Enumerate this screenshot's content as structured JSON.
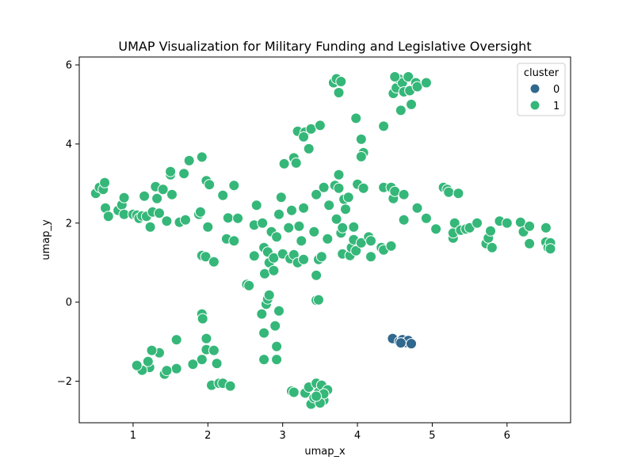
{
  "chart_data": {
    "type": "scatter",
    "title": "UMAP Visualization for Military Funding and Legislative Oversight",
    "xlabel": "umap_x",
    "ylabel": "umap_y",
    "xlim": [
      0.28,
      6.85
    ],
    "ylim": [
      -3.05,
      6.2
    ],
    "xticks": [
      1,
      2,
      3,
      4,
      5,
      6
    ],
    "yticks": [
      -2,
      0,
      2,
      4,
      6
    ],
    "legend": {
      "title": "cluster",
      "placement": "top-right",
      "entries": [
        "0",
        "1"
      ]
    },
    "colors": {
      "0": "#31688e",
      "1": "#35b779"
    },
    "series": [
      {
        "name": "0",
        "points": [
          [
            4.47,
            -0.92
          ],
          [
            4.56,
            -1.0
          ],
          [
            4.6,
            -0.95
          ],
          [
            4.64,
            -1.02
          ],
          [
            4.68,
            -0.97
          ],
          [
            4.72,
            -1.05
          ],
          [
            4.58,
            -1.03
          ]
        ]
      },
      {
        "name": "1",
        "points": [
          [
            0.5,
            2.75
          ],
          [
            0.55,
            2.9
          ],
          [
            0.6,
            2.85
          ],
          [
            0.62,
            3.02
          ],
          [
            0.63,
            2.38
          ],
          [
            0.67,
            2.17
          ],
          [
            0.8,
            2.32
          ],
          [
            0.85,
            2.46
          ],
          [
            0.88,
            2.64
          ],
          [
            0.88,
            2.22
          ],
          [
            1.0,
            2.22
          ],
          [
            1.05,
            2.2
          ],
          [
            1.08,
            2.12
          ],
          [
            1.12,
            2.18
          ],
          [
            1.15,
            2.68
          ],
          [
            1.18,
            2.17
          ],
          [
            1.23,
            1.9
          ],
          [
            1.26,
            2.28
          ],
          [
            1.3,
            2.92
          ],
          [
            1.32,
            2.62
          ],
          [
            1.35,
            2.25
          ],
          [
            1.4,
            2.85
          ],
          [
            1.45,
            2.05
          ],
          [
            1.5,
            3.22
          ],
          [
            1.5,
            3.3
          ],
          [
            1.52,
            2.72
          ],
          [
            1.62,
            2.02
          ],
          [
            1.68,
            3.25
          ],
          [
            1.7,
            2.08
          ],
          [
            1.75,
            3.58
          ],
          [
            1.88,
            2.22
          ],
          [
            1.9,
            2.28
          ],
          [
            1.92,
            3.67
          ],
          [
            1.98,
            3.07
          ],
          [
            2.02,
            2.97
          ],
          [
            2.0,
            1.9
          ],
          [
            1.92,
            1.18
          ],
          [
            1.97,
            1.15
          ],
          [
            2.08,
            1.02
          ],
          [
            2.2,
            2.7
          ],
          [
            2.25,
            1.6
          ],
          [
            2.27,
            2.13
          ],
          [
            2.35,
            2.95
          ],
          [
            2.35,
            1.55
          ],
          [
            2.4,
            2.12
          ],
          [
            2.52,
            0.45
          ],
          [
            2.62,
            1.95
          ],
          [
            2.62,
            1.17
          ],
          [
            2.65,
            2.45
          ],
          [
            2.73,
            2.0
          ],
          [
            2.75,
            1.38
          ],
          [
            2.76,
            0.72
          ],
          [
            2.8,
            1.27
          ],
          [
            2.82,
            1.0
          ],
          [
            2.85,
            1.78
          ],
          [
            2.88,
            1.12
          ],
          [
            2.88,
            0.8
          ],
          [
            2.92,
            1.65
          ],
          [
            2.95,
            2.22
          ],
          [
            2.98,
            2.65
          ],
          [
            3.0,
            1.22
          ],
          [
            3.02,
            3.5
          ],
          [
            3.08,
            1.88
          ],
          [
            3.1,
            1.1
          ],
          [
            3.12,
            2.32
          ],
          [
            3.15,
            3.65
          ],
          [
            3.15,
            1.2
          ],
          [
            3.18,
            3.52
          ],
          [
            3.2,
            4.32
          ],
          [
            3.2,
            1.0
          ],
          [
            3.22,
            1.92
          ],
          [
            3.25,
            1.55
          ],
          [
            3.28,
            2.38
          ],
          [
            3.28,
            1.08
          ],
          [
            3.3,
            4.3
          ],
          [
            3.28,
            4.18
          ],
          [
            3.35,
            3.88
          ],
          [
            3.38,
            4.38
          ],
          [
            3.42,
            1.78
          ],
          [
            3.45,
            0.68
          ],
          [
            3.45,
            2.72
          ],
          [
            3.48,
            1.08
          ],
          [
            3.5,
            4.47
          ],
          [
            3.52,
            1.15
          ],
          [
            3.55,
            2.9
          ],
          [
            3.6,
            1.6
          ],
          [
            3.62,
            2.45
          ],
          [
            3.7,
            2.95
          ],
          [
            3.72,
            2.1
          ],
          [
            3.75,
            3.22
          ],
          [
            3.75,
            2.88
          ],
          [
            3.78,
            1.75
          ],
          [
            3.8,
            1.88
          ],
          [
            3.8,
            1.22
          ],
          [
            3.82,
            2.6
          ],
          [
            3.84,
            2.35
          ],
          [
            3.88,
            2.65
          ],
          [
            3.9,
            1.18
          ],
          [
            3.92,
            1.38
          ],
          [
            3.95,
            1.58
          ],
          [
            3.95,
            1.9
          ],
          [
            3.98,
            1.3
          ],
          [
            4.0,
            2.98
          ],
          [
            4.05,
            1.5
          ],
          [
            4.08,
            2.88
          ],
          [
            4.15,
            1.65
          ],
          [
            4.18,
            1.55
          ],
          [
            4.18,
            1.15
          ],
          [
            4.32,
            1.38
          ],
          [
            4.35,
            2.9
          ],
          [
            4.35,
            1.32
          ],
          [
            4.45,
            2.9
          ],
          [
            4.45,
            1.42
          ],
          [
            4.48,
            2.62
          ],
          [
            4.5,
            2.8
          ],
          [
            4.62,
            2.72
          ],
          [
            4.62,
            2.08
          ],
          [
            4.8,
            2.38
          ],
          [
            4.92,
            2.12
          ],
          [
            5.05,
            1.85
          ],
          [
            5.15,
            2.9
          ],
          [
            5.2,
            2.85
          ],
          [
            5.22,
            2.78
          ],
          [
            5.28,
            1.62
          ],
          [
            5.28,
            1.75
          ],
          [
            5.3,
            2.0
          ],
          [
            5.35,
            2.75
          ],
          [
            5.38,
            1.82
          ],
          [
            5.45,
            1.85
          ],
          [
            5.5,
            1.88
          ],
          [
            5.6,
            2.0
          ],
          [
            5.72,
            1.48
          ],
          [
            5.75,
            1.62
          ],
          [
            5.78,
            1.8
          ],
          [
            5.8,
            1.38
          ],
          [
            5.9,
            2.05
          ],
          [
            6.0,
            2.0
          ],
          [
            6.18,
            2.02
          ],
          [
            6.22,
            1.78
          ],
          [
            6.3,
            1.92
          ],
          [
            6.3,
            1.48
          ],
          [
            6.52,
            1.88
          ],
          [
            6.52,
            1.52
          ],
          [
            6.55,
            1.38
          ],
          [
            6.58,
            1.5
          ],
          [
            6.58,
            1.35
          ],
          [
            4.35,
            4.45
          ],
          [
            3.98,
            4.65
          ],
          [
            4.05,
            4.12
          ],
          [
            4.08,
            3.78
          ],
          [
            4.05,
            3.68
          ],
          [
            3.68,
            5.55
          ],
          [
            3.72,
            5.65
          ],
          [
            3.78,
            5.58
          ],
          [
            3.75,
            5.3
          ],
          [
            4.48,
            5.28
          ],
          [
            4.52,
            5.42
          ],
          [
            4.55,
            5.65
          ],
          [
            4.6,
            5.55
          ],
          [
            4.62,
            5.32
          ],
          [
            4.68,
            5.7
          ],
          [
            4.7,
            5.35
          ],
          [
            4.72,
            5.0
          ],
          [
            4.78,
            5.55
          ],
          [
            4.8,
            5.45
          ],
          [
            4.58,
            4.85
          ],
          [
            4.92,
            5.55
          ],
          [
            4.5,
            5.7
          ],
          [
            2.55,
            0.42
          ],
          [
            2.78,
            -0.05
          ],
          [
            2.8,
            0.08
          ],
          [
            2.82,
            0.18
          ],
          [
            2.72,
            -0.3
          ],
          [
            2.75,
            -0.78
          ],
          [
            2.9,
            -0.6
          ],
          [
            2.95,
            -0.22
          ],
          [
            2.92,
            -1.12
          ],
          [
            2.75,
            -1.45
          ],
          [
            2.92,
            -1.45
          ],
          [
            3.45,
            0.05
          ],
          [
            3.48,
            0.06
          ],
          [
            1.92,
            -0.3
          ],
          [
            1.93,
            -0.42
          ],
          [
            1.98,
            -0.92
          ],
          [
            1.98,
            -1.2
          ],
          [
            2.08,
            -1.22
          ],
          [
            1.92,
            -1.45
          ],
          [
            2.12,
            -1.55
          ],
          [
            2.05,
            -2.1
          ],
          [
            2.15,
            -2.05
          ],
          [
            2.2,
            -2.05
          ],
          [
            2.3,
            -2.12
          ],
          [
            1.8,
            -1.57
          ],
          [
            1.58,
            -0.95
          ],
          [
            1.58,
            -1.68
          ],
          [
            1.42,
            -1.82
          ],
          [
            1.45,
            -1.73
          ],
          [
            1.35,
            -1.28
          ],
          [
            1.25,
            -1.22
          ],
          [
            1.22,
            -1.65
          ],
          [
            1.2,
            -1.5
          ],
          [
            1.12,
            -1.72
          ],
          [
            1.05,
            -1.6
          ],
          [
            3.12,
            -2.25
          ],
          [
            3.15,
            -2.28
          ],
          [
            3.3,
            -2.3
          ],
          [
            3.35,
            -2.15
          ],
          [
            3.38,
            -2.58
          ],
          [
            3.42,
            -2.42
          ],
          [
            3.45,
            -2.05
          ],
          [
            3.48,
            -2.28
          ],
          [
            3.52,
            -2.1
          ],
          [
            3.55,
            -2.48
          ],
          [
            3.6,
            -2.22
          ],
          [
            3.55,
            -2.32
          ],
          [
            3.5,
            -2.55
          ],
          [
            3.45,
            -2.38
          ]
        ]
      }
    ]
  }
}
